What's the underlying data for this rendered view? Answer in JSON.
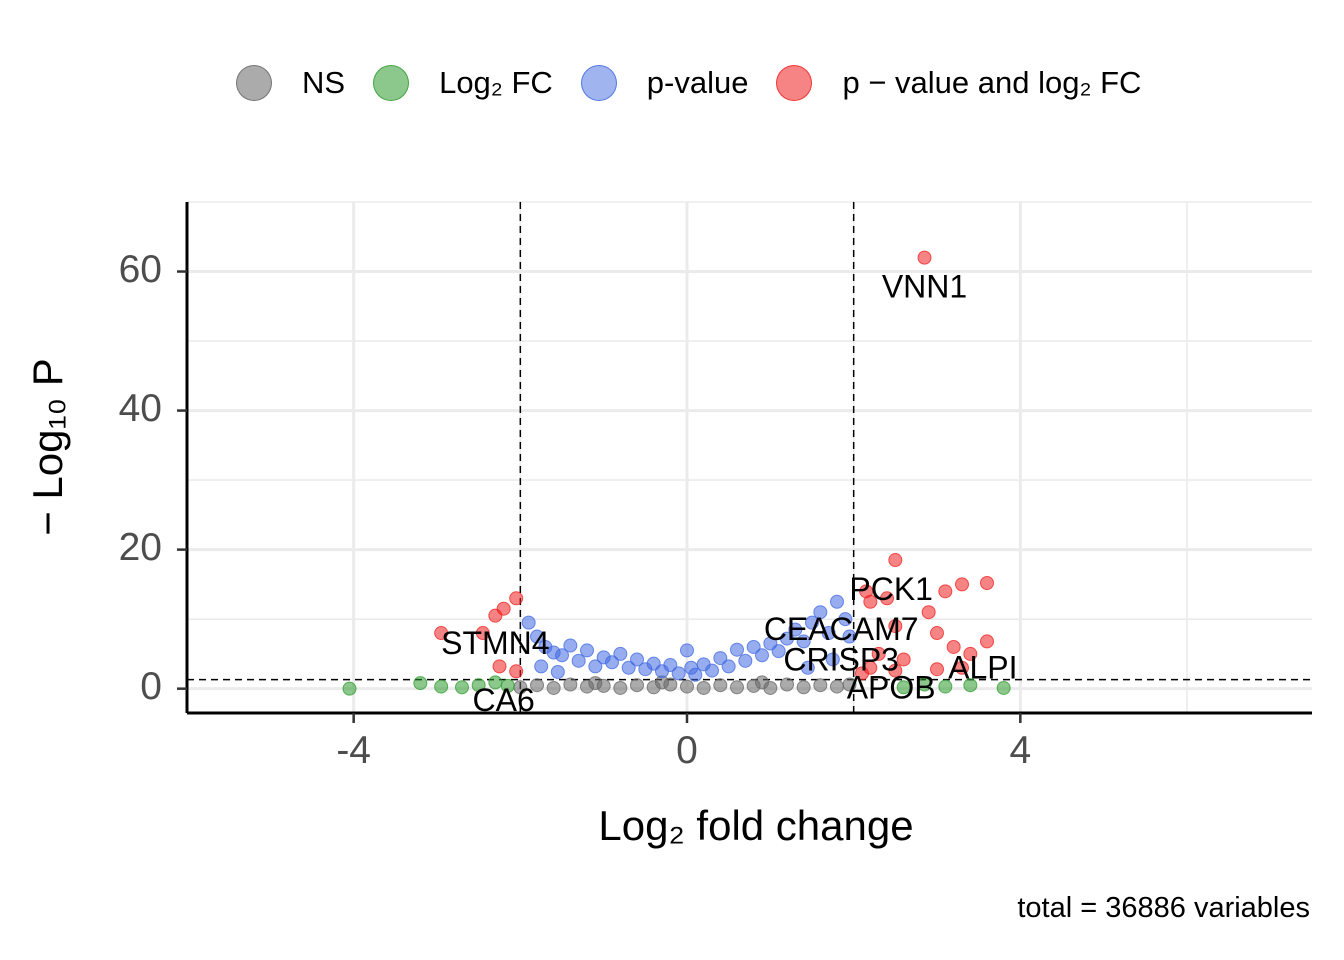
{
  "legend": [
    {
      "label": "NS",
      "color": "#666666"
    },
    {
      "label": "Log₂ FC",
      "color": "#2e9b2e"
    },
    {
      "label": "p-value",
      "color": "#4169e1"
    },
    {
      "label": "p − value and log₂ FC",
      "color": "#f01f1f"
    }
  ],
  "caption": "total = 36886 variables",
  "chart_data": {
    "type": "scatter",
    "title": "",
    "xlabel": "Log₂ fold change",
    "ylabel": "− Log₁₀ P",
    "xlim": [
      -6,
      7.5
    ],
    "ylim": [
      -3.5,
      70
    ],
    "xticks": [
      -4,
      0,
      4
    ],
    "xtick_labels": [
      "-4",
      "0",
      "4"
    ],
    "yticks": [
      0,
      20,
      40,
      60
    ],
    "ytick_labels": [
      "0",
      "20",
      "40",
      "60"
    ],
    "grid": true,
    "legend_position": "top",
    "cutoffs": {
      "log2fc": [
        -2,
        2
      ],
      "neg_log10_p": 1.3
    },
    "series": [
      {
        "name": "NS",
        "color": "#666666",
        "points": [
          [
            -2.0,
            0.2
          ],
          [
            -1.8,
            0.5
          ],
          [
            -1.6,
            0.1
          ],
          [
            -1.4,
            0.6
          ],
          [
            -1.2,
            0.3
          ],
          [
            -1.0,
            0.4
          ],
          [
            -0.8,
            0.1
          ],
          [
            -0.6,
            0.5
          ],
          [
            -0.4,
            0.2
          ],
          [
            -0.2,
            0.6
          ],
          [
            0.0,
            0.3
          ],
          [
            0.2,
            0.1
          ],
          [
            0.4,
            0.5
          ],
          [
            0.6,
            0.2
          ],
          [
            0.8,
            0.4
          ],
          [
            1.0,
            0.1
          ],
          [
            1.2,
            0.6
          ],
          [
            1.4,
            0.2
          ],
          [
            1.6,
            0.5
          ],
          [
            1.8,
            0.3
          ],
          [
            1.95,
            0.6
          ],
          [
            -1.1,
            0.8
          ],
          [
            0.9,
            0.9
          ],
          [
            -0.3,
            0.9
          ]
        ]
      },
      {
        "name": "Log₂ FC",
        "color": "#2e9b2e",
        "points": [
          [
            -4.05,
            0.0
          ],
          [
            -3.2,
            0.8
          ],
          [
            -2.95,
            0.3
          ],
          [
            -2.7,
            0.2
          ],
          [
            -2.5,
            0.5
          ],
          [
            -2.3,
            0.9
          ],
          [
            -2.15,
            0.4
          ],
          [
            2.6,
            0.2
          ],
          [
            2.85,
            0.6
          ],
          [
            3.1,
            0.3
          ],
          [
            3.4,
            0.5
          ],
          [
            3.8,
            0.1
          ]
        ]
      },
      {
        "name": "p-value",
        "color": "#4169e1",
        "points": [
          [
            -1.9,
            9.5
          ],
          [
            -1.8,
            7.5
          ],
          [
            -1.7,
            6.0
          ],
          [
            -1.6,
            5.2
          ],
          [
            -1.5,
            4.8
          ],
          [
            -1.4,
            6.2
          ],
          [
            -1.3,
            4.0
          ],
          [
            -1.2,
            5.5
          ],
          [
            -1.1,
            3.2
          ],
          [
            -1.0,
            4.5
          ],
          [
            -0.9,
            3.8
          ],
          [
            -0.8,
            5.0
          ],
          [
            -0.7,
            3.0
          ],
          [
            -0.6,
            4.2
          ],
          [
            -0.5,
            2.8
          ],
          [
            -0.4,
            3.6
          ],
          [
            -0.3,
            2.5
          ],
          [
            -0.2,
            3.4
          ],
          [
            -0.1,
            2.2
          ],
          [
            0.0,
            5.5
          ],
          [
            0.05,
            3.0
          ],
          [
            0.1,
            2.0
          ],
          [
            0.2,
            3.5
          ],
          [
            0.3,
            2.6
          ],
          [
            0.4,
            4.4
          ],
          [
            0.5,
            3.2
          ],
          [
            0.6,
            5.6
          ],
          [
            0.7,
            4.0
          ],
          [
            0.8,
            6.0
          ],
          [
            0.9,
            4.8
          ],
          [
            1.0,
            6.5
          ],
          [
            1.1,
            5.4
          ],
          [
            1.2,
            7.2
          ],
          [
            1.3,
            8.5
          ],
          [
            1.4,
            6.8
          ],
          [
            1.5,
            9.5
          ],
          [
            1.6,
            11.0
          ],
          [
            1.7,
            8.0
          ],
          [
            1.8,
            12.5
          ],
          [
            1.9,
            10.0
          ],
          [
            1.95,
            7.5
          ],
          [
            -1.75,
            3.2
          ],
          [
            -1.55,
            2.4
          ],
          [
            1.45,
            3.0
          ],
          [
            1.75,
            4.2
          ]
        ]
      },
      {
        "name": "p − value and log₂ FC",
        "color": "#f01f1f",
        "points": [
          [
            2.85,
            62.0
          ],
          [
            2.5,
            18.5
          ],
          [
            3.6,
            15.2
          ],
          [
            3.3,
            15.0
          ],
          [
            2.15,
            14.0
          ],
          [
            2.4,
            13.0
          ],
          [
            3.1,
            14.0
          ],
          [
            2.9,
            11.0
          ],
          [
            2.2,
            12.5
          ],
          [
            -2.05,
            13.0
          ],
          [
            -2.2,
            11.5
          ],
          [
            -2.3,
            10.5
          ],
          [
            -2.45,
            8.0
          ],
          [
            -2.95,
            8.0
          ],
          [
            -2.25,
            3.2
          ],
          [
            -2.05,
            2.5
          ],
          [
            2.5,
            9.0
          ],
          [
            3.0,
            8.0
          ],
          [
            3.2,
            6.0
          ],
          [
            3.6,
            6.8
          ],
          [
            2.3,
            5.0
          ],
          [
            2.6,
            4.2
          ],
          [
            3.4,
            5.0
          ],
          [
            2.2,
            3.0
          ],
          [
            2.5,
            2.6
          ],
          [
            3.0,
            2.8
          ],
          [
            2.1,
            2.2
          ],
          [
            3.3,
            3.0
          ]
        ]
      }
    ],
    "annotations": [
      {
        "text": "VNN1",
        "x": 2.85,
        "y": 57.5
      },
      {
        "text": "PCK1",
        "x": 2.45,
        "y": 14.0
      },
      {
        "text": "CEACAM7",
        "x": 1.85,
        "y": 8.2
      },
      {
        "text": "CRISP3",
        "x": 1.85,
        "y": 3.8
      },
      {
        "text": "ALPI",
        "x": 3.55,
        "y": 2.7
      },
      {
        "text": "APOB",
        "x": 2.45,
        "y": -0.2
      },
      {
        "text": "STMN4",
        "x": -2.3,
        "y": 6.2
      },
      {
        "text": "CA6",
        "x": -2.2,
        "y": -2.0
      }
    ]
  }
}
